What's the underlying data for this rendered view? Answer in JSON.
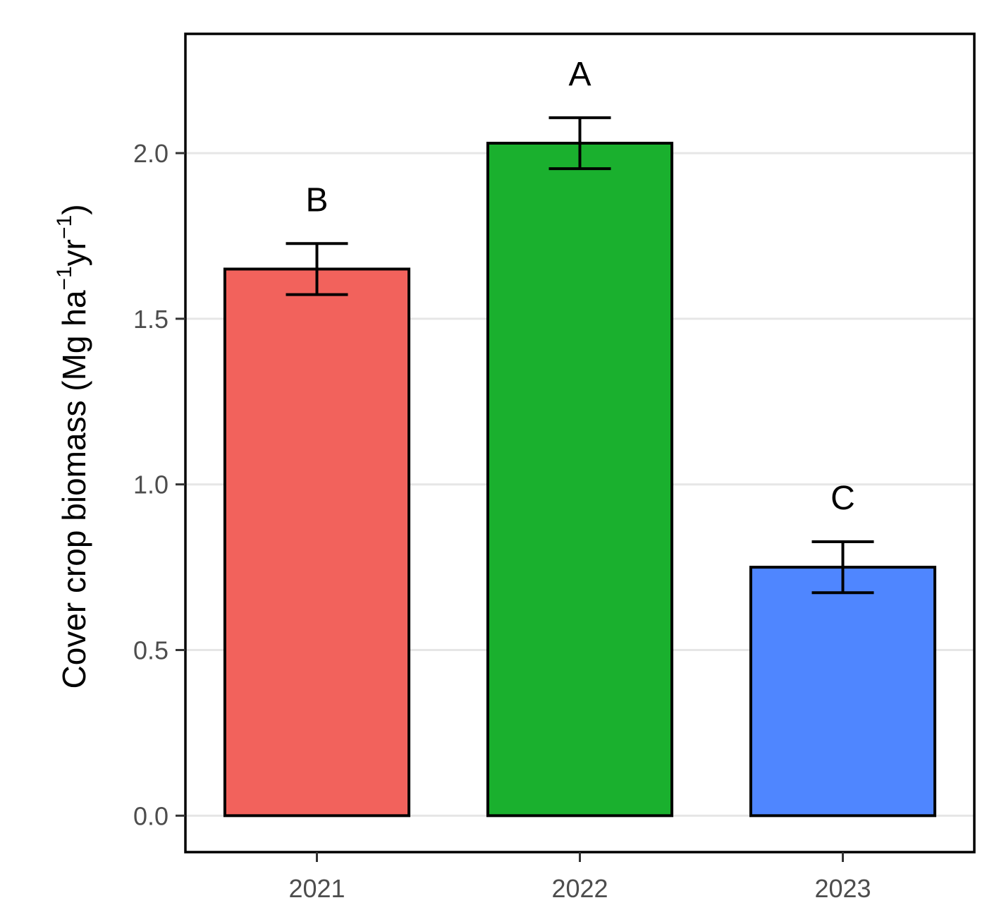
{
  "chart_data": {
    "type": "bar",
    "categories": [
      "2021",
      "2022",
      "2023"
    ],
    "values": [
      1.65,
      2.03,
      0.75
    ],
    "error": [
      0.077,
      0.077,
      0.077
    ],
    "significance_letters": [
      "B",
      "A",
      "C"
    ],
    "bar_colors": [
      "#F2625C",
      "#1AB02E",
      "#4F86FF"
    ],
    "ylabel": {
      "prefix": "Cover crop biomass (Mg ha",
      "sup1": "−1",
      "middle": "yr",
      "sup2": "−1",
      "suffix": ")"
    },
    "yticks": [
      "0.0",
      "0.5",
      "1.0",
      "1.5",
      "2.0"
    ],
    "ylim": [
      -0.11,
      2.36
    ],
    "grid": "horizontal major",
    "legend": "none"
  }
}
